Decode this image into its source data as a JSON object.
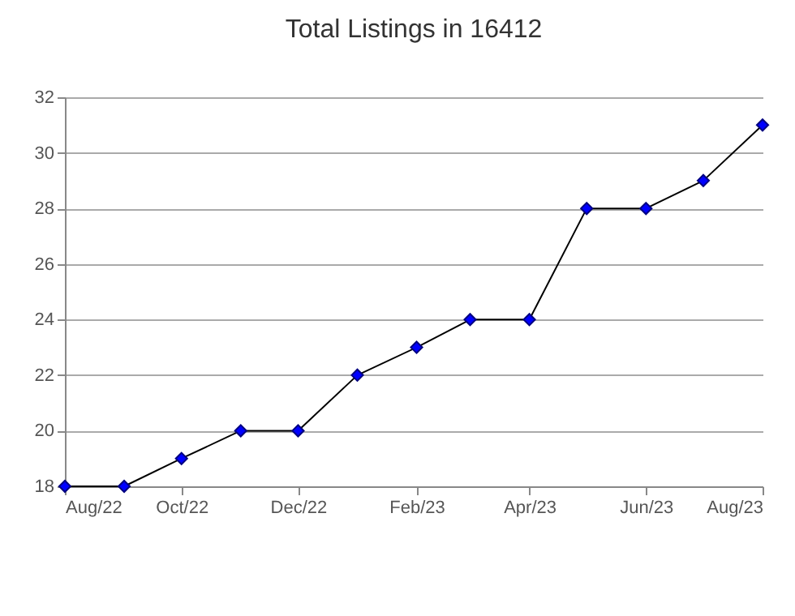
{
  "chart_data": {
    "type": "line",
    "title": "Total Listings in 16412",
    "x": [
      "2022-08",
      "2022-09",
      "2022-10",
      "2022-11",
      "2022-12",
      "2023-01",
      "2023-02",
      "2023-03",
      "2023-04",
      "2023-05",
      "2023-06",
      "2023-07",
      "2023-08"
    ],
    "series": [
      {
        "color": "#0000ff",
        "values": [
          18,
          18,
          19,
          20,
          20,
          22,
          23,
          24,
          24,
          28,
          28,
          29,
          31
        ]
      }
    ],
    "xlim": [
      "2022-08",
      "2023-08"
    ],
    "xticks": [
      {
        "value": "2022-08",
        "label": "Aug/22"
      },
      {
        "value": "2022-10",
        "label": "Oct/22"
      },
      {
        "value": "2022-12",
        "label": "Dec/22"
      },
      {
        "value": "2023-02",
        "label": "Feb/23"
      },
      {
        "value": "2023-04",
        "label": "Apr/23"
      },
      {
        "value": "2023-06",
        "label": "Jun/23"
      },
      {
        "value": "2023-08",
        "label": "Aug/23"
      }
    ],
    "ylim": [
      18,
      32
    ],
    "yticks": [
      18,
      20,
      22,
      24,
      26,
      28,
      30,
      32
    ],
    "grid": "y",
    "marker": "diamond",
    "line_style": "solid",
    "legend": false
  }
}
